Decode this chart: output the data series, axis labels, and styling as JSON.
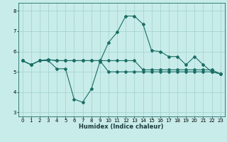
{
  "xlabel": "Humidex (Indice chaleur)",
  "xlim": [
    -0.5,
    23.5
  ],
  "ylim": [
    2.8,
    8.4
  ],
  "yticks": [
    3,
    4,
    5,
    6,
    7,
    8
  ],
  "xticks": [
    0,
    1,
    2,
    3,
    4,
    5,
    6,
    7,
    8,
    9,
    10,
    11,
    12,
    13,
    14,
    15,
    16,
    17,
    18,
    19,
    20,
    21,
    22,
    23
  ],
  "bg_color": "#c8ecea",
  "grid_color": "#a0d0cc",
  "line_color": "#1a6e65",
  "line1_y": [
    5.55,
    5.35,
    5.55,
    5.55,
    5.15,
    5.15,
    3.65,
    3.5,
    4.15,
    5.5,
    6.45,
    6.95,
    7.75,
    7.75,
    7.35,
    6.05,
    6.0,
    5.75,
    5.75,
    5.35,
    5.75,
    5.35,
    5.0,
    4.9
  ],
  "line2_y": [
    5.55,
    5.35,
    5.55,
    5.6,
    5.55,
    5.55,
    5.55,
    5.55,
    5.55,
    5.55,
    5.55,
    5.55,
    5.55,
    5.55,
    5.1,
    5.1,
    5.1,
    5.1,
    5.1,
    5.1,
    5.1,
    5.1,
    5.1,
    4.9
  ],
  "line3_y": [
    5.55,
    5.35,
    5.55,
    5.6,
    5.55,
    5.55,
    5.55,
    5.55,
    5.55,
    5.55,
    5.0,
    5.0,
    5.0,
    5.0,
    5.0,
    5.0,
    5.0,
    5.0,
    5.0,
    5.0,
    5.0,
    5.0,
    5.0,
    4.9
  ],
  "marker": "D",
  "marker_size": 2.0,
  "linewidth": 0.8,
  "tick_fontsize": 5.0,
  "xlabel_fontsize": 6.0
}
